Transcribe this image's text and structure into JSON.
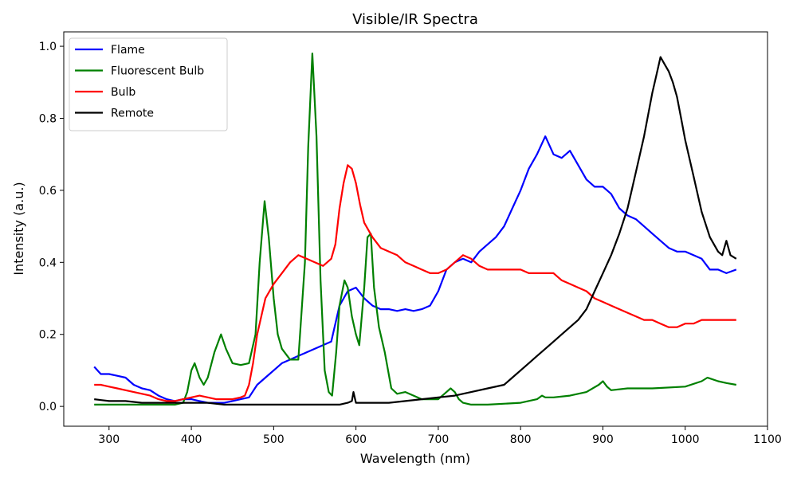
{
  "chart_data": {
    "type": "line",
    "title": "Visible/IR Spectra",
    "xlabel": "Wavelength (nm)",
    "ylabel": "Intensity (a.u.)",
    "xlim": [
      245,
      1100
    ],
    "ylim": [
      -0.055,
      1.04
    ],
    "xticks": [
      300,
      400,
      500,
      600,
      700,
      800,
      900,
      1000,
      1100
    ],
    "yticks": [
      0.0,
      0.2,
      0.4,
      0.6,
      0.8,
      1.0
    ],
    "xtick_labels": [
      "300",
      "400",
      "500",
      "600",
      "700",
      "800",
      "900",
      "1000",
      "1100"
    ],
    "ytick_labels": [
      "0.0",
      "0.2",
      "0.4",
      "0.6",
      "0.8",
      "1.0"
    ],
    "grid": false,
    "legend_position": "top-left",
    "series": [
      {
        "name": "Flame",
        "color": "#0000ff",
        "x": [
          282,
          290,
          300,
          310,
          320,
          330,
          340,
          350,
          360,
          370,
          380,
          390,
          400,
          410,
          420,
          430,
          440,
          450,
          460,
          470,
          480,
          490,
          500,
          510,
          520,
          530,
          540,
          550,
          560,
          570,
          580,
          590,
          600,
          610,
          620,
          630,
          640,
          650,
          660,
          670,
          680,
          690,
          700,
          710,
          720,
          730,
          740,
          750,
          760,
          770,
          780,
          790,
          800,
          810,
          820,
          830,
          840,
          850,
          860,
          870,
          880,
          890,
          900,
          910,
          920,
          930,
          940,
          950,
          960,
          970,
          980,
          990,
          1000,
          1010,
          1020,
          1030,
          1040,
          1050,
          1062
        ],
        "y": [
          0.11,
          0.09,
          0.09,
          0.085,
          0.08,
          0.06,
          0.05,
          0.045,
          0.03,
          0.02,
          0.015,
          0.02,
          0.02,
          0.015,
          0.01,
          0.01,
          0.01,
          0.015,
          0.02,
          0.025,
          0.06,
          0.08,
          0.1,
          0.12,
          0.13,
          0.14,
          0.15,
          0.16,
          0.17,
          0.18,
          0.28,
          0.32,
          0.33,
          0.3,
          0.28,
          0.27,
          0.27,
          0.265,
          0.27,
          0.265,
          0.27,
          0.28,
          0.32,
          0.38,
          0.4,
          0.41,
          0.4,
          0.43,
          0.45,
          0.47,
          0.5,
          0.55,
          0.6,
          0.66,
          0.7,
          0.75,
          0.7,
          0.69,
          0.71,
          0.67,
          0.63,
          0.61,
          0.61,
          0.59,
          0.55,
          0.53,
          0.52,
          0.5,
          0.48,
          0.46,
          0.44,
          0.43,
          0.43,
          0.42,
          0.41,
          0.38,
          0.38,
          0.37,
          0.38
        ]
      },
      {
        "name": "Fluorescent Bulb",
        "color": "#008000",
        "x": [
          282,
          300,
          320,
          340,
          360,
          380,
          390,
          395,
          400,
          404,
          410,
          415,
          420,
          428,
          436,
          442,
          450,
          460,
          470,
          478,
          483,
          489,
          494,
          500,
          505,
          510,
          520,
          530,
          538,
          542,
          547,
          552,
          557,
          562,
          567,
          571,
          576,
          580,
          586,
          590,
          595,
          600,
          604,
          610,
          614,
          618,
          622,
          628,
          635,
          643,
          650,
          660,
          670,
          680,
          690,
          700,
          710,
          715,
          720,
          725,
          730,
          740,
          760,
          800,
          820,
          826,
          830,
          840,
          860,
          880,
          895,
          900,
          905,
          910,
          930,
          960,
          1000,
          1020,
          1027,
          1040,
          1050,
          1062
        ],
        "y": [
          0.005,
          0.005,
          0.005,
          0.005,
          0.005,
          0.005,
          0.01,
          0.04,
          0.1,
          0.12,
          0.08,
          0.06,
          0.08,
          0.15,
          0.2,
          0.16,
          0.12,
          0.115,
          0.12,
          0.2,
          0.4,
          0.57,
          0.47,
          0.3,
          0.2,
          0.16,
          0.13,
          0.13,
          0.4,
          0.72,
          0.98,
          0.75,
          0.35,
          0.1,
          0.04,
          0.03,
          0.15,
          0.28,
          0.35,
          0.33,
          0.25,
          0.2,
          0.17,
          0.33,
          0.47,
          0.48,
          0.33,
          0.22,
          0.15,
          0.05,
          0.035,
          0.04,
          0.03,
          0.02,
          0.02,
          0.02,
          0.04,
          0.05,
          0.04,
          0.02,
          0.01,
          0.005,
          0.005,
          0.01,
          0.02,
          0.03,
          0.025,
          0.025,
          0.03,
          0.04,
          0.06,
          0.07,
          0.055,
          0.045,
          0.05,
          0.05,
          0.055,
          0.07,
          0.08,
          0.07,
          0.065,
          0.06
        ]
      },
      {
        "name": "Bulb",
        "color": "#ff0000",
        "x": [
          282,
          290,
          300,
          310,
          320,
          330,
          340,
          350,
          360,
          370,
          380,
          390,
          400,
          410,
          420,
          430,
          440,
          450,
          460,
          465,
          470,
          475,
          480,
          490,
          500,
          510,
          520,
          530,
          540,
          550,
          560,
          570,
          575,
          580,
          585,
          590,
          595,
          600,
          605,
          610,
          620,
          630,
          640,
          650,
          660,
          670,
          680,
          690,
          700,
          710,
          720,
          730,
          740,
          750,
          760,
          770,
          780,
          790,
          800,
          810,
          820,
          830,
          840,
          850,
          860,
          870,
          880,
          890,
          900,
          910,
          920,
          930,
          940,
          950,
          960,
          970,
          980,
          990,
          1000,
          1010,
          1020,
          1030,
          1040,
          1050,
          1062
        ],
        "y": [
          0.06,
          0.06,
          0.055,
          0.05,
          0.045,
          0.04,
          0.035,
          0.03,
          0.02,
          0.015,
          0.015,
          0.02,
          0.025,
          0.03,
          0.025,
          0.02,
          0.02,
          0.02,
          0.025,
          0.03,
          0.06,
          0.12,
          0.2,
          0.3,
          0.34,
          0.37,
          0.4,
          0.42,
          0.41,
          0.4,
          0.39,
          0.41,
          0.45,
          0.55,
          0.62,
          0.67,
          0.66,
          0.62,
          0.56,
          0.51,
          0.47,
          0.44,
          0.43,
          0.42,
          0.4,
          0.39,
          0.38,
          0.37,
          0.37,
          0.38,
          0.4,
          0.42,
          0.41,
          0.39,
          0.38,
          0.38,
          0.38,
          0.38,
          0.38,
          0.37,
          0.37,
          0.37,
          0.37,
          0.35,
          0.34,
          0.33,
          0.32,
          0.3,
          0.29,
          0.28,
          0.27,
          0.26,
          0.25,
          0.24,
          0.24,
          0.23,
          0.22,
          0.22,
          0.23,
          0.23,
          0.24,
          0.24,
          0.24,
          0.24,
          0.24
        ]
      },
      {
        "name": "Remote",
        "color": "#000000",
        "x": [
          282,
          300,
          320,
          340,
          360,
          380,
          400,
          420,
          440,
          460,
          480,
          500,
          520,
          540,
          560,
          580,
          590,
          595,
          597,
          600,
          620,
          640,
          660,
          680,
          700,
          720,
          740,
          760,
          780,
          790,
          800,
          810,
          820,
          830,
          840,
          850,
          860,
          870,
          880,
          890,
          900,
          910,
          920,
          930,
          940,
          950,
          960,
          965,
          970,
          975,
          980,
          985,
          990,
          995,
          1000,
          1010,
          1020,
          1030,
          1040,
          1045,
          1050,
          1055,
          1062
        ],
        "y": [
          0.02,
          0.015,
          0.015,
          0.01,
          0.01,
          0.01,
          0.01,
          0.01,
          0.005,
          0.005,
          0.005,
          0.005,
          0.005,
          0.005,
          0.005,
          0.005,
          0.01,
          0.015,
          0.04,
          0.01,
          0.01,
          0.01,
          0.015,
          0.02,
          0.025,
          0.03,
          0.04,
          0.05,
          0.06,
          0.08,
          0.1,
          0.12,
          0.14,
          0.16,
          0.18,
          0.2,
          0.22,
          0.24,
          0.27,
          0.32,
          0.37,
          0.42,
          0.48,
          0.55,
          0.65,
          0.75,
          0.87,
          0.92,
          0.97,
          0.95,
          0.93,
          0.9,
          0.86,
          0.8,
          0.74,
          0.64,
          0.54,
          0.47,
          0.43,
          0.42,
          0.46,
          0.42,
          0.41
        ]
      }
    ]
  }
}
